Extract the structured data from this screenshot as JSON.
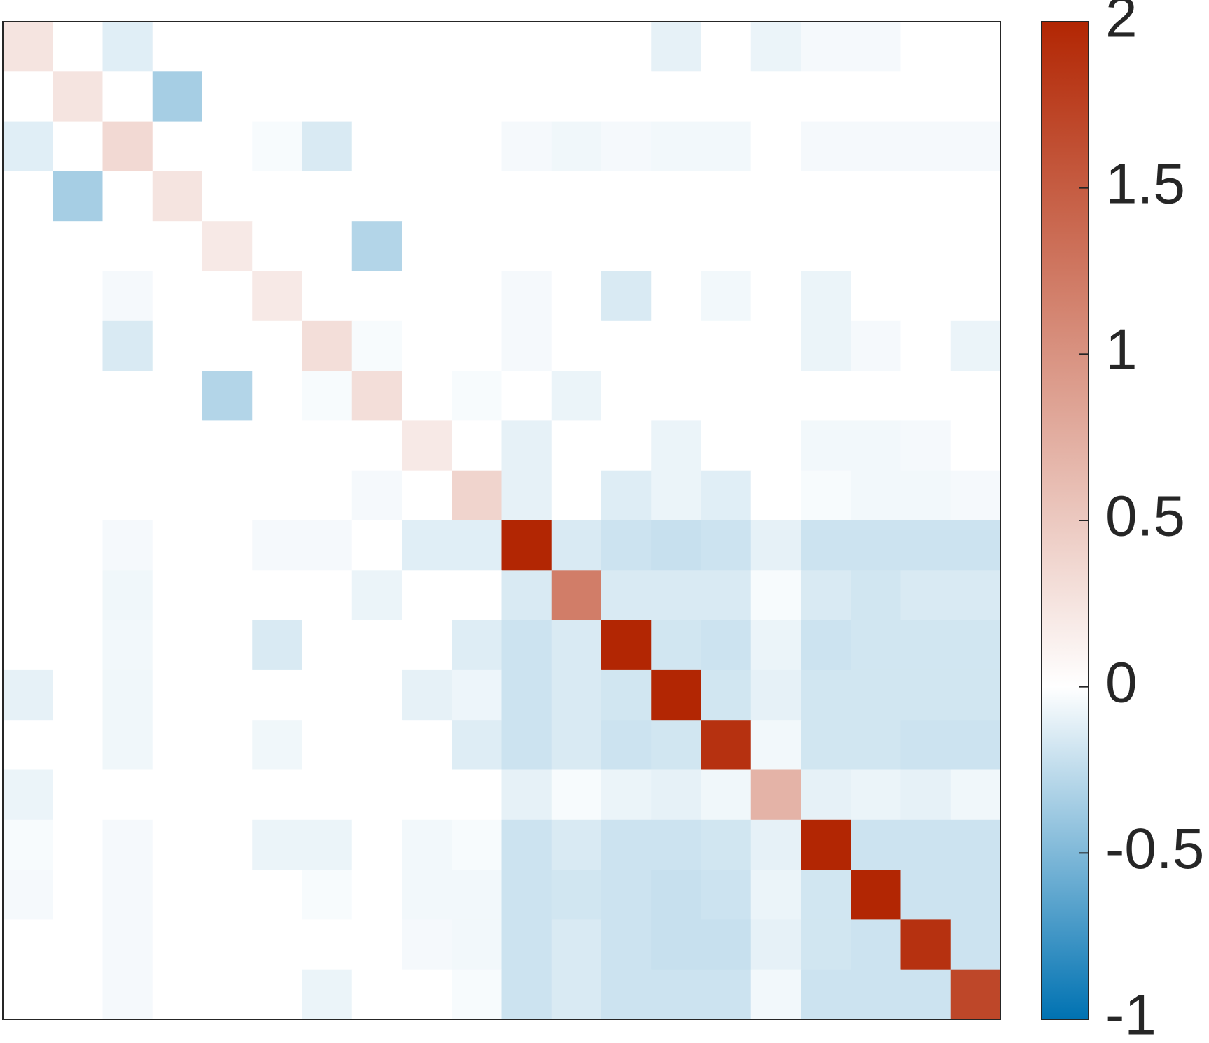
{
  "chart_data": {
    "type": "heatmap",
    "title": "",
    "xlabel": "",
    "ylabel": "",
    "rows": 20,
    "cols": 20,
    "values": [
      [
        0.25,
        0,
        -0.12,
        0,
        0,
        0,
        0,
        0,
        0,
        0,
        0,
        0,
        0,
        -0.1,
        0,
        -0.08,
        -0.04,
        -0.04,
        0,
        0
      ],
      [
        0,
        0.25,
        0,
        -0.35,
        0,
        0,
        0,
        0,
        0,
        0,
        0,
        0,
        0,
        0,
        0,
        0,
        0,
        0,
        0,
        0
      ],
      [
        -0.12,
        0,
        0.35,
        0,
        0,
        -0.03,
        -0.15,
        0,
        0,
        0,
        -0.04,
        -0.06,
        -0.04,
        -0.05,
        -0.05,
        0,
        -0.04,
        -0.04,
        -0.04,
        -0.04
      ],
      [
        0,
        -0.35,
        0,
        0.25,
        0,
        0,
        0,
        0,
        0,
        0,
        0,
        0,
        0,
        0,
        0,
        0,
        0,
        0,
        0,
        0
      ],
      [
        0,
        0,
        0,
        0,
        0.2,
        0,
        0,
        -0.3,
        0,
        0,
        0,
        0,
        0,
        0,
        0,
        0,
        0,
        0,
        0,
        0
      ],
      [
        0,
        0,
        -0.04,
        0,
        0,
        0.2,
        0,
        0,
        0,
        0,
        -0.04,
        0,
        -0.15,
        0,
        -0.05,
        0,
        -0.08,
        0,
        0,
        0
      ],
      [
        0,
        0,
        -0.15,
        0,
        0,
        0,
        0.3,
        -0.03,
        0,
        0,
        -0.04,
        0,
        0,
        0,
        0,
        0,
        -0.08,
        -0.04,
        0,
        -0.08
      ],
      [
        0,
        0,
        0,
        0,
        -0.3,
        0,
        -0.03,
        0.3,
        0,
        -0.03,
        0,
        -0.08,
        0,
        0,
        0,
        0,
        0,
        0,
        0,
        0
      ],
      [
        0,
        0,
        0,
        0,
        0,
        0,
        0,
        0,
        0.2,
        0,
        -0.1,
        0,
        0,
        -0.08,
        0,
        0,
        -0.05,
        -0.05,
        -0.04,
        0
      ],
      [
        0,
        0,
        0,
        0,
        0,
        0,
        0,
        -0.04,
        0,
        0.4,
        -0.1,
        0,
        -0.13,
        -0.08,
        -0.12,
        0,
        -0.03,
        -0.05,
        -0.05,
        -0.04
      ],
      [
        0,
        0,
        -0.04,
        0,
        0,
        -0.04,
        -0.04,
        0,
        -0.12,
        -0.12,
        2.0,
        -0.15,
        -0.2,
        -0.22,
        -0.2,
        -0.1,
        -0.2,
        -0.2,
        -0.2,
        -0.2
      ],
      [
        0,
        0,
        -0.06,
        0,
        0,
        0,
        0,
        -0.08,
        0,
        0,
        -0.15,
        1.2,
        -0.15,
        -0.15,
        -0.15,
        -0.03,
        -0.15,
        -0.18,
        -0.15,
        -0.15
      ],
      [
        0,
        0,
        -0.05,
        0,
        0,
        -0.15,
        0,
        0,
        0,
        -0.13,
        -0.2,
        -0.15,
        2.0,
        -0.18,
        -0.2,
        -0.08,
        -0.2,
        -0.18,
        -0.18,
        -0.18
      ],
      [
        -0.1,
        0,
        -0.06,
        0,
        0,
        0,
        0,
        0,
        -0.1,
        -0.07,
        -0.2,
        -0.15,
        -0.18,
        2.0,
        -0.18,
        -0.1,
        -0.18,
        -0.18,
        -0.18,
        -0.18
      ],
      [
        0,
        0,
        -0.06,
        0,
        0,
        -0.06,
        0,
        0,
        0,
        -0.13,
        -0.2,
        -0.15,
        -0.2,
        -0.18,
        1.9,
        -0.05,
        -0.18,
        -0.18,
        -0.2,
        -0.2
      ],
      [
        -0.08,
        0,
        0,
        0,
        0,
        0,
        0,
        0,
        0,
        0,
        -0.1,
        -0.03,
        -0.08,
        -0.1,
        -0.06,
        0.7,
        -0.1,
        -0.08,
        -0.1,
        -0.06
      ],
      [
        -0.03,
        0,
        -0.04,
        0,
        0,
        -0.08,
        -0.08,
        0,
        -0.05,
        -0.03,
        -0.2,
        -0.15,
        -0.2,
        -0.2,
        -0.18,
        -0.1,
        2.0,
        -0.2,
        -0.2,
        -0.2
      ],
      [
        -0.04,
        0,
        -0.04,
        0,
        0,
        0,
        -0.03,
        0,
        -0.05,
        -0.05,
        -0.2,
        -0.18,
        -0.2,
        -0.22,
        -0.2,
        -0.08,
        -0.18,
        2.0,
        -0.2,
        -0.2
      ],
      [
        0,
        0,
        -0.04,
        0,
        0,
        0,
        0,
        0,
        -0.04,
        -0.05,
        -0.2,
        -0.15,
        -0.2,
        -0.22,
        -0.22,
        -0.1,
        -0.18,
        -0.2,
        1.9,
        -0.2
      ],
      [
        0,
        0,
        -0.04,
        0,
        0,
        0,
        -0.08,
        0,
        0,
        -0.03,
        -0.2,
        -0.15,
        -0.2,
        -0.2,
        -0.2,
        -0.05,
        -0.2,
        -0.2,
        -0.2,
        1.7
      ]
    ],
    "colorbar": {
      "min": -1,
      "max": 2,
      "ticks": [
        2,
        1.5,
        1,
        0.5,
        0,
        -0.5,
        -1
      ],
      "tick_labels": [
        "2",
        "1.5",
        "1",
        "0.5",
        "0",
        "-0.5",
        "-1"
      ],
      "negative_color": "#0072b2",
      "zero_color": "#ffffff",
      "positive_color": "#b22603"
    },
    "grid": false,
    "axis_ticks_visible": false
  }
}
